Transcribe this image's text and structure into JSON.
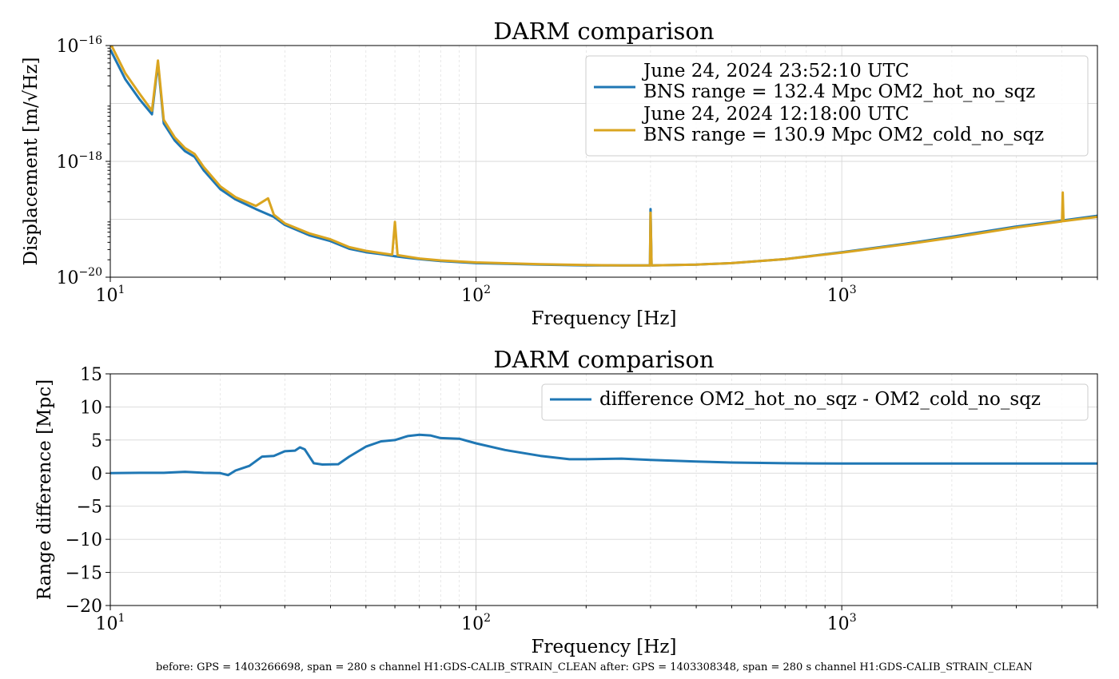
{
  "colors": {
    "blue": "#1f77b4",
    "orange": "#daa520"
  },
  "footer": "before: GPS = 1403266698, span = 280 s channel H1:GDS-CALIB_STRAIN_CLEAN after: GPS = 1403308348, span = 280 s channel H1:GDS-CALIB_STRAIN_CLEAN",
  "chart_data": [
    {
      "type": "line",
      "title": "DARM comparison",
      "xlabel": "Frequency [Hz]",
      "ylabel": "Displacement [m/√Hz]",
      "xscale": "log",
      "yscale": "log",
      "xlim": [
        10,
        5000
      ],
      "ylim": [
        1e-20,
        1e-16
      ],
      "grid": true,
      "legend": "top-right",
      "x_ticks": [
        {
          "value": 10,
          "base": "10",
          "exp": "1"
        },
        {
          "value": 100,
          "base": "10",
          "exp": "2"
        },
        {
          "value": 1000,
          "base": "10",
          "exp": "3"
        }
      ],
      "y_ticks": [
        {
          "value": 1e-16,
          "base": "10",
          "exp": "−16"
        },
        {
          "value": 1e-18,
          "base": "10",
          "exp": "−18"
        },
        {
          "value": 1e-20,
          "base": "10",
          "exp": "−20"
        }
      ],
      "series": [
        {
          "name": "June 24, 2024 23:52:10 UTC\nBNS range = 132.4 Mpc OM2_hot_no_sqz",
          "color": "#1f77b4",
          "points": [
            [
              10,
              8.5e-17
            ],
            [
              11,
              2.6e-17
            ],
            [
              12,
              1.2e-17
            ],
            [
              13,
              6.5e-18
            ],
            [
              13.5,
              5e-17
            ],
            [
              14,
              4.5e-18
            ],
            [
              15,
              2.3e-18
            ],
            [
              16,
              1.5e-18
            ],
            [
              17,
              1.2e-18
            ],
            [
              18,
              7e-19
            ],
            [
              20,
              3.3e-19
            ],
            [
              22,
              2.2e-19
            ],
            [
              25,
              1.5e-19
            ],
            [
              28,
              1.1e-19
            ],
            [
              30,
              8e-20
            ],
            [
              35,
              5.3e-20
            ],
            [
              40,
              4.2e-20
            ],
            [
              45,
              3.1e-20
            ],
            [
              50,
              2.7e-20
            ],
            [
              55,
              2.5e-20
            ],
            [
              60,
              2.3e-20
            ],
            [
              70,
              2.05e-20
            ],
            [
              80,
              1.9e-20
            ],
            [
              100,
              1.75e-20
            ],
            [
              150,
              1.65e-20
            ],
            [
              200,
              1.6e-20
            ],
            [
              250,
              1.6e-20
            ],
            [
              299,
              1.6e-20
            ],
            [
              300,
              1.5e-19
            ],
            [
              302,
              1.6e-20
            ],
            [
              400,
              1.65e-20
            ],
            [
              500,
              1.75e-20
            ],
            [
              700,
              2.05e-20
            ],
            [
              1000,
              2.7e-20
            ],
            [
              1500,
              3.8e-20
            ],
            [
              2000,
              5e-20
            ],
            [
              3000,
              7.5e-20
            ],
            [
              4000,
              9.5e-20
            ],
            [
              5000,
              1.15e-19
            ]
          ]
        },
        {
          "name": "June 24, 2024 12:18:00 UTC\nBNS range = 130.9 Mpc OM2_cold_no_sqz",
          "color": "#daa520",
          "points": [
            [
              10,
              1.1e-16
            ],
            [
              11,
              3.3e-17
            ],
            [
              12,
              1.5e-17
            ],
            [
              13,
              7.5e-18
            ],
            [
              13.5,
              5.5e-17
            ],
            [
              14,
              5.2e-18
            ],
            [
              15,
              2.6e-18
            ],
            [
              16,
              1.7e-18
            ],
            [
              17,
              1.35e-18
            ],
            [
              18,
              8e-19
            ],
            [
              20,
              3.7e-19
            ],
            [
              22,
              2.4e-19
            ],
            [
              25,
              1.7e-19
            ],
            [
              27,
              2.3e-19
            ],
            [
              28,
              1.2e-19
            ],
            [
              30,
              8.5e-20
            ],
            [
              35,
              5.7e-20
            ],
            [
              40,
              4.5e-20
            ],
            [
              45,
              3.3e-20
            ],
            [
              50,
              2.85e-20
            ],
            [
              55,
              2.6e-20
            ],
            [
              59,
              2.45e-20
            ],
            [
              60,
              9e-20
            ],
            [
              61,
              2.4e-20
            ],
            [
              70,
              2.1e-20
            ],
            [
              80,
              1.95e-20
            ],
            [
              100,
              1.8e-20
            ],
            [
              150,
              1.68e-20
            ],
            [
              200,
              1.62e-20
            ],
            [
              250,
              1.6e-20
            ],
            [
              299,
              1.6e-20
            ],
            [
              300,
              1.3e-19
            ],
            [
              302,
              1.6e-20
            ],
            [
              400,
              1.65e-20
            ],
            [
              500,
              1.75e-20
            ],
            [
              700,
              2.05e-20
            ],
            [
              1000,
              2.65e-20
            ],
            [
              1500,
              3.7e-20
            ],
            [
              2000,
              4.8e-20
            ],
            [
              3000,
              7.2e-20
            ],
            [
              4000,
              9.2e-20
            ],
            [
              4020,
              2.9e-19
            ],
            [
              4040,
              9.3e-20
            ],
            [
              5000,
              1.1e-19
            ]
          ]
        }
      ]
    },
    {
      "type": "line",
      "title": "DARM comparison",
      "xlabel": "Frequency [Hz]",
      "ylabel": "Range difference [Mpc]",
      "xscale": "log",
      "yscale": "linear",
      "xlim": [
        10,
        5000
      ],
      "ylim": [
        -20,
        15
      ],
      "grid": true,
      "legend": "top-right",
      "x_ticks": [
        {
          "value": 10,
          "base": "10",
          "exp": "1"
        },
        {
          "value": 100,
          "base": "10",
          "exp": "2"
        },
        {
          "value": 1000,
          "base": "10",
          "exp": "3"
        }
      ],
      "y_ticks": [
        {
          "value": 15,
          "label": "15"
        },
        {
          "value": 10,
          "label": "10"
        },
        {
          "value": 5,
          "label": "5"
        },
        {
          "value": 0,
          "label": "0"
        },
        {
          "value": -5,
          "label": "−5"
        },
        {
          "value": -10,
          "label": "−10"
        },
        {
          "value": -15,
          "label": "−15"
        },
        {
          "value": -20,
          "label": "−20"
        }
      ],
      "series": [
        {
          "name": "difference OM2_hot_no_sqz - OM2_cold_no_sqz",
          "color": "#1f77b4",
          "points": [
            [
              10,
              0
            ],
            [
              12,
              0.05
            ],
            [
              14,
              0.05
            ],
            [
              16,
              0.2
            ],
            [
              18,
              0.05
            ],
            [
              20,
              0
            ],
            [
              21,
              -0.3
            ],
            [
              22,
              0.4
            ],
            [
              24,
              1.1
            ],
            [
              26,
              2.5
            ],
            [
              28,
              2.6
            ],
            [
              30,
              3.3
            ],
            [
              32,
              3.4
            ],
            [
              33,
              3.9
            ],
            [
              34,
              3.6
            ],
            [
              36,
              1.5
            ],
            [
              38,
              1.3
            ],
            [
              42,
              1.35
            ],
            [
              45,
              2.5
            ],
            [
              50,
              4.0
            ],
            [
              55,
              4.8
            ],
            [
              60,
              5.0
            ],
            [
              65,
              5.6
            ],
            [
              70,
              5.8
            ],
            [
              75,
              5.7
            ],
            [
              80,
              5.3
            ],
            [
              90,
              5.2
            ],
            [
              100,
              4.5
            ],
            [
              120,
              3.5
            ],
            [
              150,
              2.6
            ],
            [
              180,
              2.1
            ],
            [
              200,
              2.1
            ],
            [
              250,
              2.2
            ],
            [
              300,
              2.0
            ],
            [
              400,
              1.75
            ],
            [
              500,
              1.6
            ],
            [
              700,
              1.5
            ],
            [
              1000,
              1.45
            ],
            [
              2000,
              1.45
            ],
            [
              5000,
              1.45
            ]
          ]
        }
      ]
    }
  ]
}
